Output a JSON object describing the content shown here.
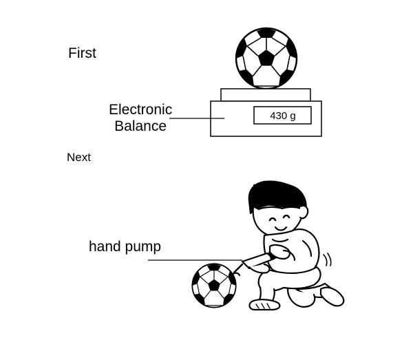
{
  "steps": {
    "first": "First",
    "next": "Next"
  },
  "balance": {
    "label_line1": "Electronic",
    "label_line2": "Balance",
    "reading": "430 g"
  },
  "pump": {
    "label": "hand pump"
  }
}
